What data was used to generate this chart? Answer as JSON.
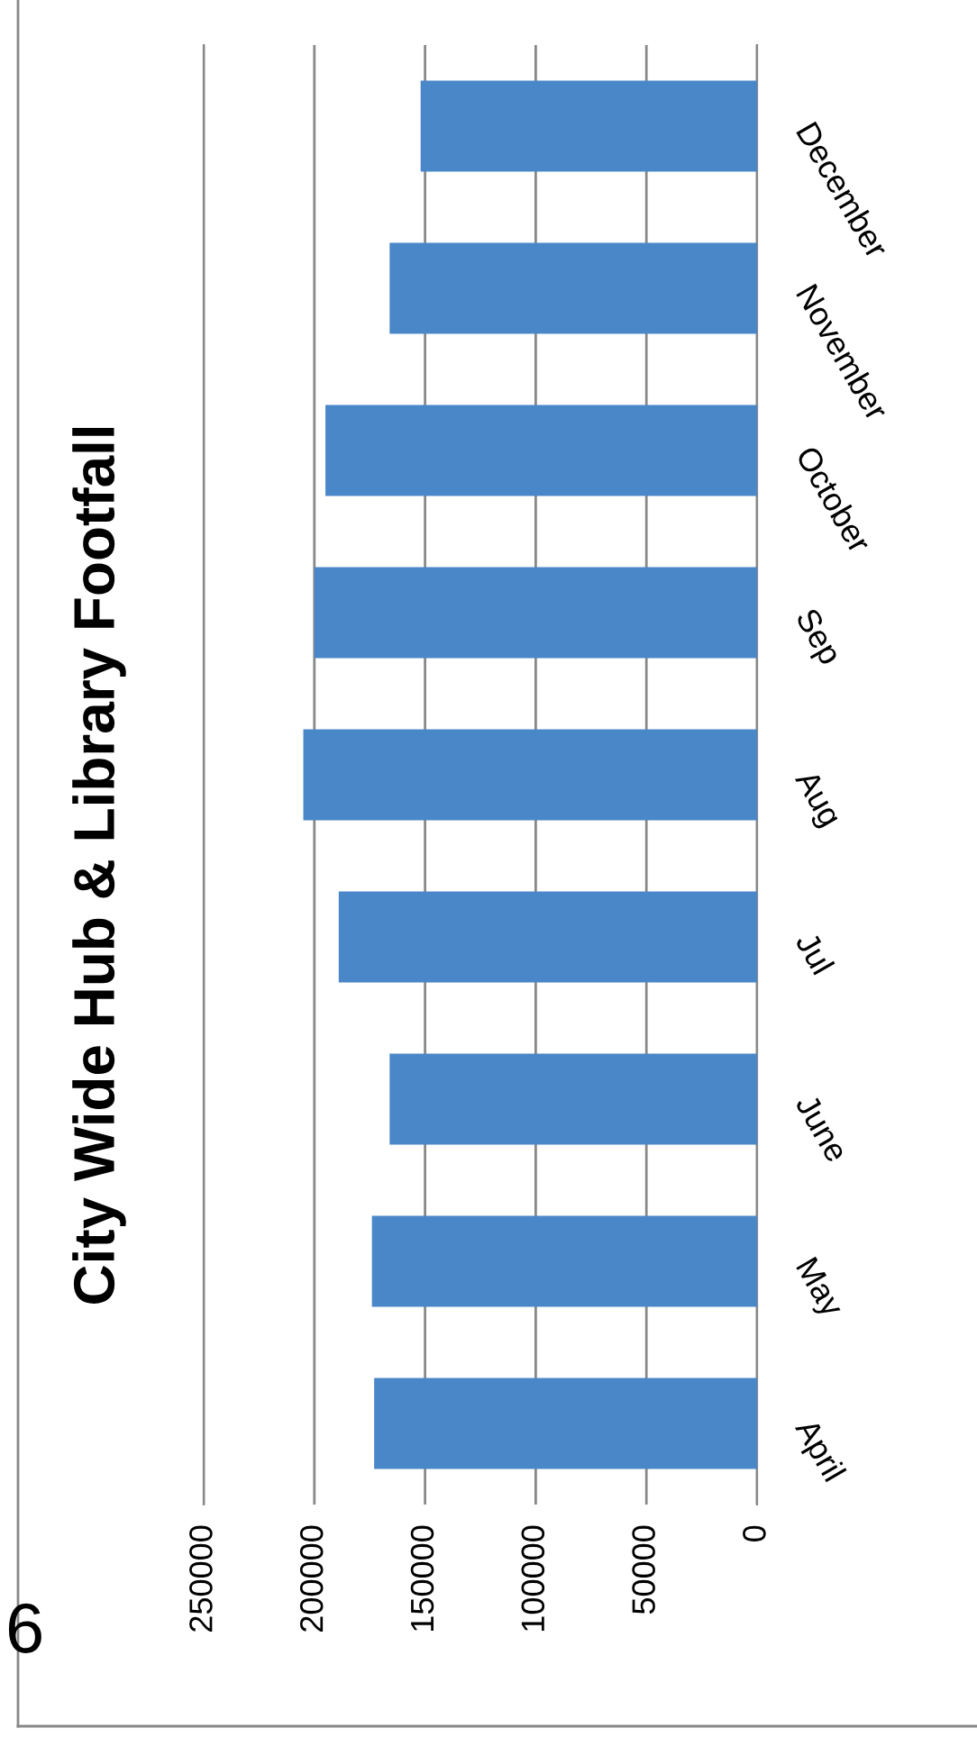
{
  "chart_data": {
    "type": "bar",
    "orientation": "horizontal",
    "title": "City Wide Hub & Library Footfall",
    "categories": [
      "December",
      "November",
      "October",
      "Sep",
      "Aug",
      "Jul",
      "June",
      "May",
      "April"
    ],
    "values": [
      152000,
      166000,
      195000,
      200000,
      205000,
      189000,
      166000,
      174000,
      173000
    ],
    "color": "#4a87c8",
    "xlim": [
      250000,
      0
    ],
    "xticks": [
      250000,
      200000,
      150000,
      100000,
      50000,
      0
    ],
    "grid": "x",
    "annotations": [
      "6"
    ]
  }
}
